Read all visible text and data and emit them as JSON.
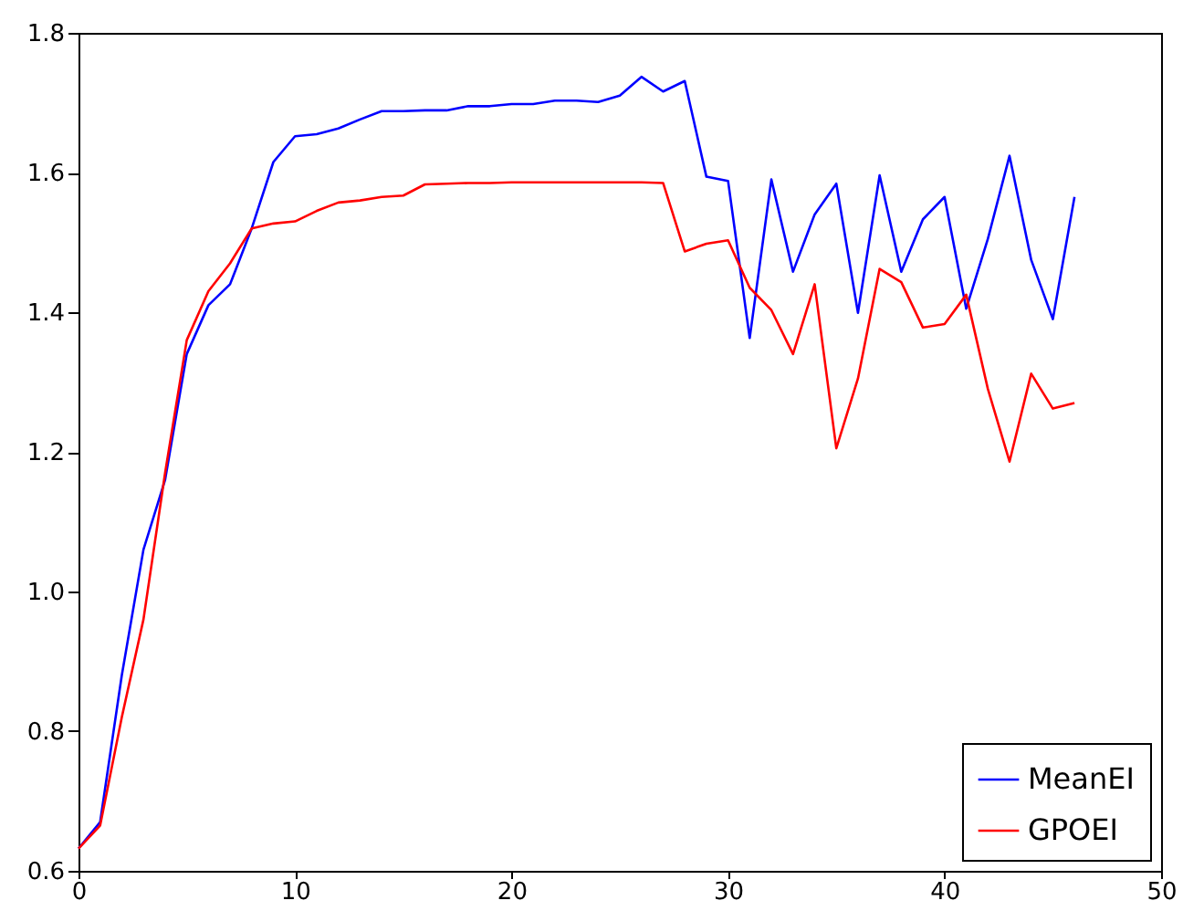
{
  "chart_data": {
    "type": "line",
    "x": [
      0,
      1,
      2,
      3,
      4,
      5,
      6,
      7,
      8,
      9,
      10,
      11,
      12,
      13,
      14,
      15,
      16,
      17,
      18,
      19,
      20,
      21,
      22,
      23,
      24,
      25,
      26,
      27,
      28,
      29,
      30,
      31,
      32,
      33,
      34,
      35,
      36,
      37,
      38,
      39,
      40,
      41,
      42,
      43,
      44,
      45,
      46
    ],
    "series": [
      {
        "name": "MeanEI",
        "color": "#0000ff",
        "values": [
          0.632,
          0.67,
          0.88,
          1.06,
          1.16,
          1.34,
          1.41,
          1.44,
          1.52,
          1.615,
          1.652,
          1.655,
          1.663,
          1.676,
          1.688,
          1.688,
          1.689,
          1.689,
          1.695,
          1.695,
          1.698,
          1.698,
          1.703,
          1.703,
          1.701,
          1.71,
          1.737,
          1.716,
          1.731,
          1.594,
          1.588,
          1.363,
          1.59,
          1.458,
          1.54,
          1.584,
          1.399,
          1.596,
          1.458,
          1.533,
          1.565,
          1.405,
          1.505,
          1.624,
          1.475,
          1.39,
          1.565
        ]
      },
      {
        "name": "GPOEI",
        "color": "#ff0000",
        "values": [
          0.632,
          0.665,
          0.82,
          0.96,
          1.17,
          1.36,
          1.43,
          1.47,
          1.52,
          1.527,
          1.53,
          1.545,
          1.557,
          1.56,
          1.565,
          1.567,
          1.583,
          1.584,
          1.585,
          1.585,
          1.586,
          1.586,
          1.586,
          1.586,
          1.586,
          1.586,
          1.586,
          1.585,
          1.487,
          1.498,
          1.503,
          1.435,
          1.403,
          1.34,
          1.44,
          1.205,
          1.305,
          1.462,
          1.443,
          1.378,
          1.383,
          1.425,
          1.29,
          1.186,
          1.312,
          1.262,
          1.27
        ]
      }
    ],
    "xlim": [
      0,
      50
    ],
    "xticks": [
      0,
      10,
      20,
      30,
      40,
      50
    ],
    "ylim": [
      0.6,
      1.8
    ],
    "yticks": [
      0.6,
      0.8,
      {
        "value": 1,
        "label": "1.0"
      },
      1.2,
      1.4,
      1.6,
      1.8
    ],
    "grid": false,
    "legend": "bottom right"
  }
}
